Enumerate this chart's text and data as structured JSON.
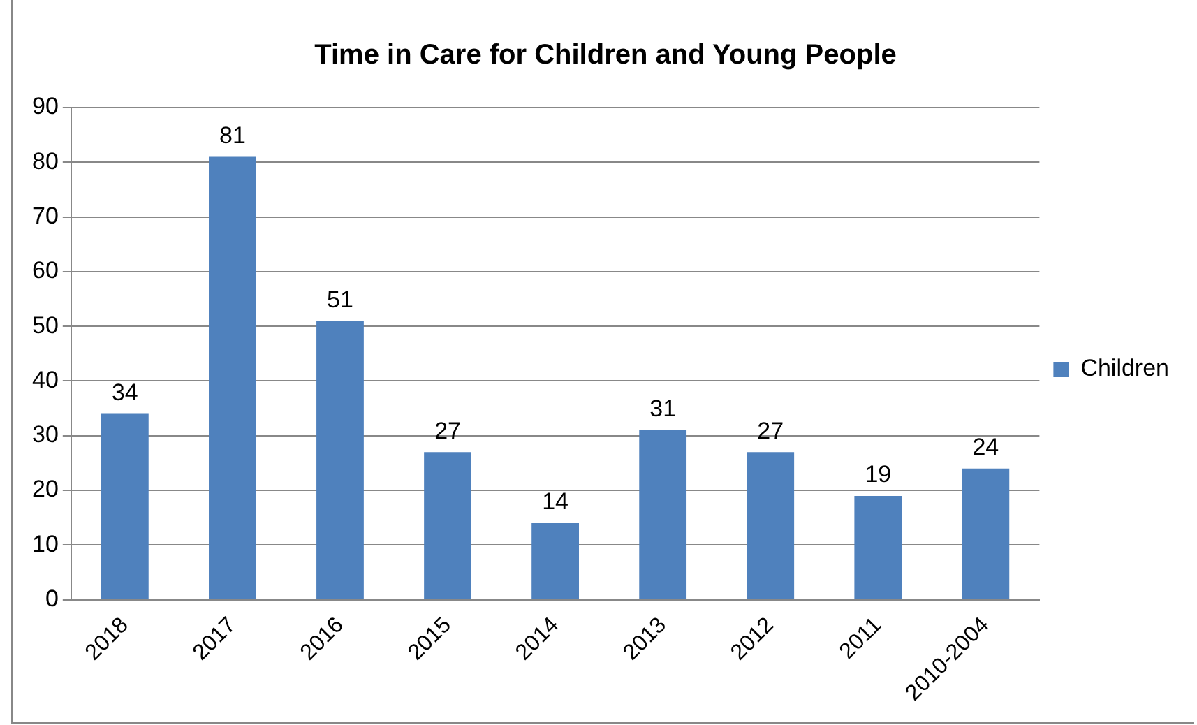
{
  "chart_data": {
    "type": "bar",
    "title": "Time in Care for Children and Young People",
    "categories": [
      "2018",
      "2017",
      "2016",
      "2015",
      "2014",
      "2013",
      "2012",
      "2011",
      "2010-2004"
    ],
    "series": [
      {
        "name": "Children",
        "color": "#4f81bd",
        "values": [
          34,
          81,
          51,
          27,
          14,
          31,
          27,
          19,
          24
        ]
      }
    ],
    "ylim": [
      0,
      90
    ],
    "yticks": [
      0,
      10,
      20,
      30,
      40,
      50,
      60,
      70,
      80,
      90
    ],
    "grid": "y",
    "legend": "right",
    "data_labels": true
  }
}
